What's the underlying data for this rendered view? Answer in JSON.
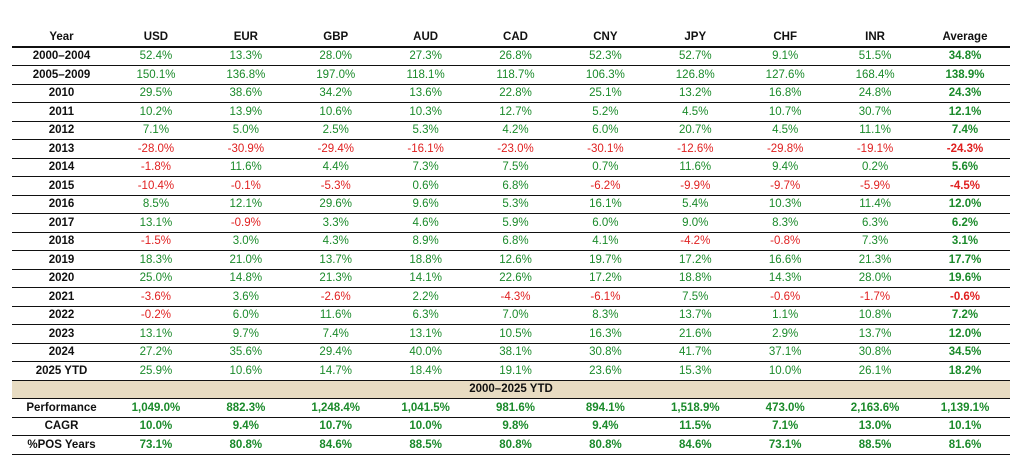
{
  "colors": {
    "positive": "#1a8a2a",
    "negative": "#e02020",
    "band": "#e8dcc2"
  },
  "header": [
    "Year",
    "USD",
    "EUR",
    "GBP",
    "AUD",
    "CAD",
    "CNY",
    "JPY",
    "CHF",
    "INR",
    "Average"
  ],
  "rows": [
    [
      "2000–2004",
      "52.4%",
      "13.3%",
      "28.0%",
      "27.3%",
      "26.8%",
      "52.3%",
      "52.7%",
      "9.1%",
      "51.5%",
      "34.8%"
    ],
    [
      "2005–2009",
      "150.1%",
      "136.8%",
      "197.0%",
      "118.1%",
      "118.7%",
      "106.3%",
      "126.8%",
      "127.6%",
      "168.4%",
      "138.9%"
    ],
    [
      "2010",
      "29.5%",
      "38.6%",
      "34.2%",
      "13.6%",
      "22.8%",
      "25.1%",
      "13.2%",
      "16.8%",
      "24.8%",
      "24.3%"
    ],
    [
      "2011",
      "10.2%",
      "13.9%",
      "10.6%",
      "10.3%",
      "12.7%",
      "5.2%",
      "4.5%",
      "10.7%",
      "30.7%",
      "12.1%"
    ],
    [
      "2012",
      "7.1%",
      "5.0%",
      "2.5%",
      "5.3%",
      "4.2%",
      "6.0%",
      "20.7%",
      "4.5%",
      "11.1%",
      "7.4%"
    ],
    [
      "2013",
      "-28.0%",
      "-30.9%",
      "-29.4%",
      "-16.1%",
      "-23.0%",
      "-30.1%",
      "-12.6%",
      "-29.8%",
      "-19.1%",
      "-24.3%"
    ],
    [
      "2014",
      "-1.8%",
      "11.6%",
      "4.4%",
      "7.3%",
      "7.5%",
      "0.7%",
      "11.6%",
      "9.4%",
      "0.2%",
      "5.6%"
    ],
    [
      "2015",
      "-10.4%",
      "-0.1%",
      "-5.3%",
      "0.6%",
      "6.8%",
      "-6.2%",
      "-9.9%",
      "-9.7%",
      "-5.9%",
      "-4.5%"
    ],
    [
      "2016",
      "8.5%",
      "12.1%",
      "29.6%",
      "9.6%",
      "5.3%",
      "16.1%",
      "5.4%",
      "10.3%",
      "11.4%",
      "12.0%"
    ],
    [
      "2017",
      "13.1%",
      "-0.9%",
      "3.3%",
      "4.6%",
      "5.9%",
      "6.0%",
      "9.0%",
      "8.3%",
      "6.3%",
      "6.2%"
    ],
    [
      "2018",
      "-1.5%",
      "3.0%",
      "4.3%",
      "8.9%",
      "6.8%",
      "4.1%",
      "-4.2%",
      "-0.8%",
      "7.3%",
      "3.1%"
    ],
    [
      "2019",
      "18.3%",
      "21.0%",
      "13.7%",
      "18.8%",
      "12.6%",
      "19.7%",
      "17.2%",
      "16.6%",
      "21.3%",
      "17.7%"
    ],
    [
      "2020",
      "25.0%",
      "14.8%",
      "21.3%",
      "14.1%",
      "22.6%",
      "17.2%",
      "18.8%",
      "14.3%",
      "28.0%",
      "19.6%"
    ],
    [
      "2021",
      "-3.6%",
      "3.6%",
      "-2.6%",
      "2.2%",
      "-4.3%",
      "-6.1%",
      "7.5%",
      "-0.6%",
      "-1.7%",
      "-0.6%"
    ],
    [
      "2022",
      "-0.2%",
      "6.0%",
      "11.6%",
      "6.3%",
      "7.0%",
      "8.3%",
      "13.7%",
      "1.1%",
      "10.8%",
      "7.2%"
    ],
    [
      "2023",
      "13.1%",
      "9.7%",
      "7.4%",
      "13.1%",
      "10.5%",
      "16.3%",
      "21.6%",
      "2.9%",
      "13.7%",
      "12.0%"
    ],
    [
      "2024",
      "27.2%",
      "35.6%",
      "29.4%",
      "40.0%",
      "38.1%",
      "30.8%",
      "41.7%",
      "37.1%",
      "30.8%",
      "34.5%"
    ],
    [
      "2025 YTD",
      "25.9%",
      "10.6%",
      "14.7%",
      "18.4%",
      "19.1%",
      "23.6%",
      "15.3%",
      "10.0%",
      "26.1%",
      "18.2%"
    ]
  ],
  "band_label": "2000–2025 YTD",
  "summary": [
    [
      "Performance",
      "1,049.0%",
      "882.3%",
      "1,248.4%",
      "1,041.5%",
      "981.6%",
      "894.1%",
      "1,518.9%",
      "473.0%",
      "2,163.6%",
      "1,139.1%"
    ],
    [
      "CAGR",
      "10.0%",
      "9.4%",
      "10.7%",
      "10.0%",
      "9.8%",
      "9.4%",
      "11.5%",
      "7.1%",
      "13.0%",
      "10.1%"
    ],
    [
      "%POS Years",
      "73.1%",
      "80.8%",
      "84.6%",
      "88.5%",
      "80.8%",
      "80.8%",
      "84.6%",
      "73.1%",
      "88.5%",
      "81.6%"
    ]
  ]
}
